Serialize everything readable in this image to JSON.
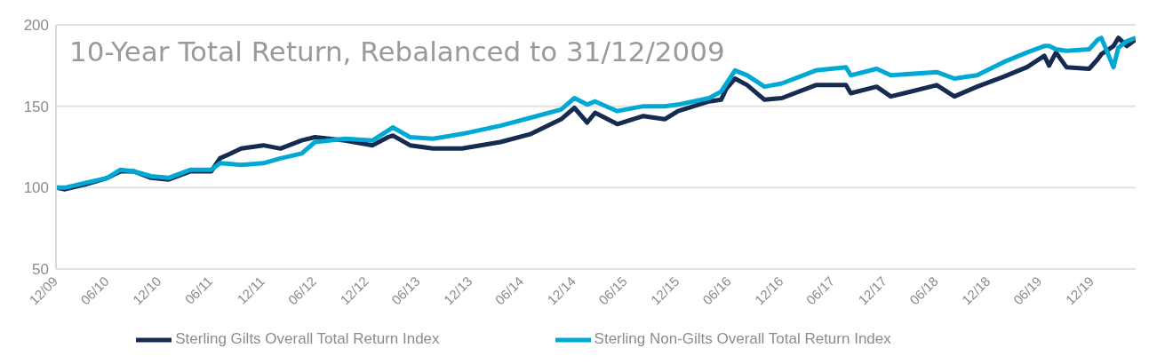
{
  "chart_data": {
    "type": "line",
    "title": "10-Year Total Return, Rebalanced to 31/12/2009",
    "x": [
      "2009-12-31",
      "2010-02",
      "2010-04-15",
      "2010-07",
      "2010-08-15",
      "2010-10",
      "2010-12",
      "2011-02",
      "2011-04-20",
      "2011-07",
      "2011-08",
      "2011-10-15",
      "2012-01",
      "2012-03",
      "2012-05-15",
      "2012-07",
      "2012-10-15",
      "2013-01-20",
      "2013-03-15",
      "2013-04",
      "2013-06",
      "2013-08-20",
      "2013-12",
      "2014-04-15",
      "2014-08",
      "2014-11-15",
      "2015-01",
      "2015-02-15",
      "2015-03-15",
      "2015-06",
      "2015-09",
      "2015-11-15",
      "2016-01",
      "2016-04-20",
      "2016-06-01",
      "2016-06-20",
      "2016-07-20",
      "2016-09",
      "2016-11",
      "2017-01",
      "2017-05",
      "2017-08-15",
      "2017-09",
      "2017-12",
      "2018-01-20",
      "2018-07",
      "2018-09",
      "2018-11-20",
      "2019-02-20",
      "2019-05-15",
      "2019-07-15",
      "2019-08",
      "2019-08-25",
      "2019-10",
      "2019-12-20",
      "2020-01-20",
      "2020-02",
      "2020-03-15",
      "2020-04",
      "2020-05",
      "2020-06"
    ],
    "series": [
      {
        "name": "Sterling Gilts Overall Total Return Index",
        "color": "#152b52",
        "values": [
          100,
          99,
          102,
          106,
          110,
          110,
          106,
          105,
          110,
          110,
          118,
          124,
          126,
          124,
          129,
          131,
          129,
          126,
          131,
          132,
          126,
          124,
          124,
          128,
          133,
          142,
          149,
          140,
          146,
          139,
          144,
          142,
          147,
          153,
          154,
          161,
          167,
          163,
          154,
          155,
          163,
          163,
          158,
          162,
          156,
          163,
          156,
          162,
          168,
          174,
          181,
          175,
          183,
          174,
          173,
          179,
          182,
          187,
          192,
          187,
          191
        ]
      },
      {
        "name": "Sterling Non-Gilts Overall Total Return Index",
        "color": "#00a9d4",
        "values": [
          100,
          100,
          103,
          106,
          111,
          110,
          107,
          106,
          111,
          111,
          115,
          114,
          115,
          118,
          121,
          128,
          130,
          129,
          135,
          137,
          131,
          130,
          133,
          138,
          143,
          148,
          155,
          151,
          153,
          147,
          150,
          150,
          151,
          155,
          159,
          164,
          172,
          169,
          162,
          164,
          172,
          174,
          169,
          173,
          169,
          171,
          167,
          169,
          177,
          183,
          187,
          187,
          185,
          184,
          185,
          191,
          192,
          174,
          186,
          190,
          192
        ]
      }
    ],
    "xlim": [
      "2009-12-31",
      "2020-06"
    ],
    "xticks": [
      {
        "value": "2009-12-31",
        "label": "12/09"
      },
      {
        "value": "2010-06-30",
        "label": "06/10"
      },
      {
        "value": "2010-12-31",
        "label": "12/10"
      },
      {
        "value": "2011-06-30",
        "label": "06/11"
      },
      {
        "value": "2011-12-31",
        "label": "12/11"
      },
      {
        "value": "2012-06-30",
        "label": "06/12"
      },
      {
        "value": "2012-12-31",
        "label": "12/12"
      },
      {
        "value": "2013-06-30",
        "label": "06/13"
      },
      {
        "value": "2013-12-31",
        "label": "12/13"
      },
      {
        "value": "2014-06-30",
        "label": "06/14"
      },
      {
        "value": "2014-12-31",
        "label": "12/14"
      },
      {
        "value": "2015-06-30",
        "label": "06/15"
      },
      {
        "value": "2015-12-31",
        "label": "12/15"
      },
      {
        "value": "2016-06-30",
        "label": "06/16"
      },
      {
        "value": "2016-12-31",
        "label": "12/16"
      },
      {
        "value": "2017-06-30",
        "label": "06/17"
      },
      {
        "value": "2017-12-31",
        "label": "12/17"
      },
      {
        "value": "2018-06-30",
        "label": "06/18"
      },
      {
        "value": "2018-12-31",
        "label": "12/18"
      },
      {
        "value": "2019-06-30",
        "label": "06/19"
      },
      {
        "value": "2019-12-31",
        "label": "12/19"
      }
    ],
    "ylim": [
      50,
      200
    ],
    "yticks": [
      50,
      100,
      150,
      200
    ],
    "grid": "y",
    "legend": "bottom",
    "marker": "none",
    "line_style": "solid"
  }
}
